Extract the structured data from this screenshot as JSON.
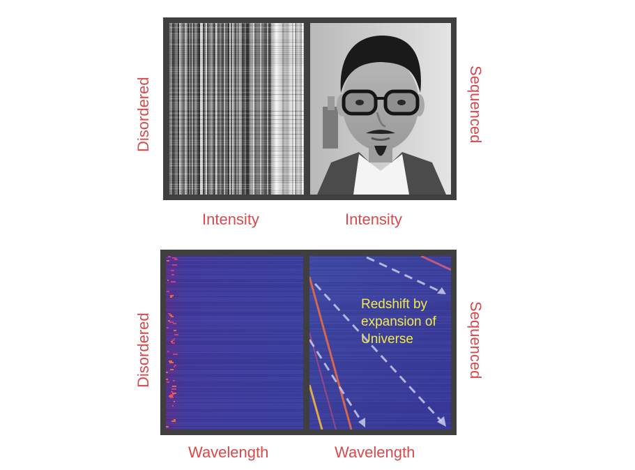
{
  "top_row": {
    "left_side_label": "Disordered",
    "right_side_label": "Sequenced",
    "left_axis_label": "Intensity",
    "right_axis_label": "Intensity"
  },
  "bottom_row": {
    "left_side_label": "Disordered",
    "right_side_label": "Sequenced",
    "left_axis_label": "Wavelength",
    "right_axis_label": "Wavelength",
    "annotation_lines": [
      "Redshift by",
      "expansion of",
      "Universe"
    ]
  },
  "colors": {
    "label_red": "#d9484a",
    "annotation_yellow": "#f3ea4a",
    "frame_gray": "#3f3f3f",
    "spectrum_blue": "#3b3a9a"
  }
}
